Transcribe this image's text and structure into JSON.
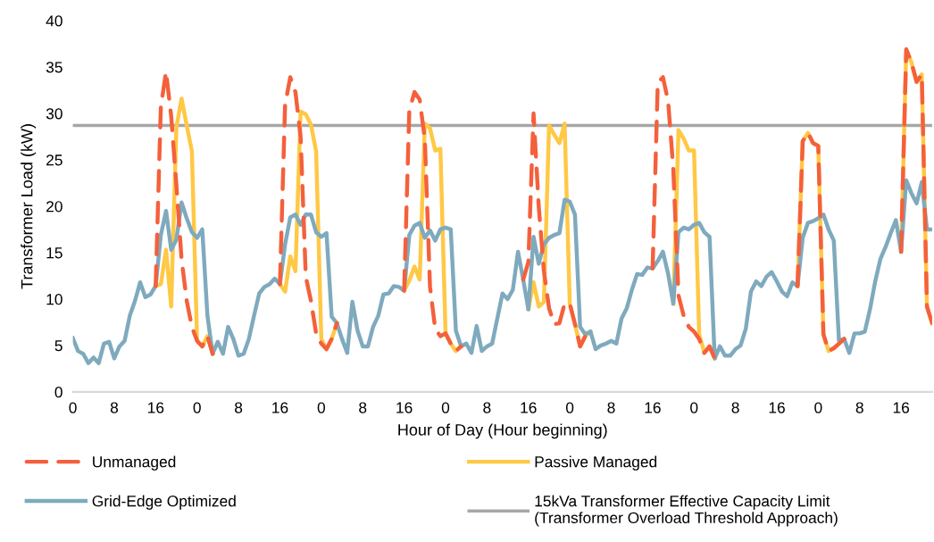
{
  "chart_data": {
    "type": "line",
    "xlabel": "Hour of Day (Hour beginning)",
    "ylabel": "Transformer Load (kW)",
    "categories": [
      "0",
      null,
      null,
      null,
      null,
      null,
      null,
      null,
      "8",
      null,
      null,
      null,
      null,
      null,
      null,
      null,
      "16",
      null,
      null,
      null,
      null,
      null,
      null,
      null,
      "0",
      null,
      null,
      null,
      null,
      null,
      null,
      null,
      "8",
      null,
      null,
      null,
      null,
      null,
      null,
      null,
      "16",
      null,
      null,
      null,
      null,
      null,
      null,
      null,
      "0",
      null,
      null,
      null,
      null,
      null,
      null,
      null,
      "8",
      null,
      null,
      null,
      null,
      null,
      null,
      null,
      "16",
      null,
      null,
      null,
      null,
      null,
      null,
      null,
      "0",
      null,
      null,
      null,
      null,
      null,
      null,
      null,
      "8",
      null,
      null,
      null,
      null,
      null,
      null,
      null,
      "16",
      null,
      null,
      null,
      null,
      null,
      null,
      null,
      "0",
      null,
      null,
      null,
      null,
      null,
      null,
      null,
      "8",
      null,
      null,
      null,
      null,
      null,
      null,
      null,
      "16",
      null,
      null,
      null,
      null,
      null,
      null,
      null,
      "0",
      null,
      null,
      null,
      null,
      null,
      null,
      null,
      "8",
      null,
      null,
      null,
      null,
      null,
      null,
      null,
      "16",
      null,
      null,
      null,
      null,
      null,
      null,
      null,
      "0",
      null,
      null,
      null,
      null,
      null,
      null,
      null,
      "8",
      null,
      null,
      null,
      null,
      null,
      null,
      null,
      "16",
      null,
      null,
      null,
      null,
      null,
      null
    ],
    "ylim": [
      0,
      40
    ],
    "yticks": [
      0,
      5,
      10,
      15,
      20,
      25,
      30,
      35,
      40
    ],
    "grid": false,
    "legend": "bottom",
    "series": [
      {
        "name": "Unmanaged",
        "color": "#f4603c",
        "line_style": "dashed",
        "values": [
          null,
          null,
          null,
          null,
          null,
          null,
          null,
          null,
          null,
          null,
          null,
          null,
          null,
          null,
          null,
          null,
          11.4,
          30.7,
          34.5,
          29.7,
          22.3,
          14.3,
          9.8,
          7.0,
          5.5,
          4.9,
          6.0,
          4.1,
          null,
          null,
          null,
          null,
          null,
          null,
          null,
          null,
          null,
          null,
          null,
          null,
          11.6,
          30.9,
          33.9,
          32.3,
          27.5,
          12.4,
          9.8,
          6.3,
          5.2,
          4.6,
          5.7,
          7.4,
          null,
          null,
          null,
          null,
          null,
          null,
          null,
          null,
          null,
          null,
          null,
          null,
          10.9,
          30.3,
          32.3,
          31.5,
          27.2,
          11.3,
          6.8,
          6.0,
          6.3,
          5.2,
          4.4,
          4.9,
          null,
          null,
          null,
          null,
          null,
          null,
          null,
          null,
          null,
          null,
          null,
          12.1,
          14.0,
          30.0,
          20,
          13,
          9,
          7.3,
          7.4,
          9.5,
          9.5,
          7.3,
          4.9,
          6.0,
          6.5,
          null,
          null,
          null,
          null,
          null,
          null,
          null,
          null,
          null,
          null,
          null,
          13.3,
          33.3,
          33.9,
          31.3,
          24,
          10.4,
          8.2,
          7.0,
          6.5,
          5.7,
          4.2,
          4.9,
          3.6,
          null,
          null,
          null,
          null,
          null,
          null,
          null,
          null,
          null,
          null,
          null,
          null,
          null,
          null,
          null,
          11.4,
          27.0,
          27.9,
          26.8,
          26.5,
          6.2,
          4.4,
          4.7,
          5.2,
          5.7,
          null,
          null,
          null,
          null,
          null,
          null,
          null,
          null,
          null,
          null,
          15.1,
          36.9,
          35.5,
          33.4,
          34.2,
          9.2,
          7.4
        ]
      },
      {
        "name": "Passive Managed",
        "color": "#ffc845",
        "line_style": "solid",
        "values": [
          null,
          null,
          null,
          null,
          null,
          null,
          null,
          null,
          null,
          null,
          null,
          null,
          null,
          null,
          null,
          null,
          11.4,
          11.6,
          15.3,
          9.2,
          28.5,
          31.6,
          28.7,
          25.9,
          5.5,
          4.9,
          6.0,
          4.1,
          null,
          null,
          null,
          null,
          null,
          null,
          null,
          null,
          null,
          null,
          null,
          null,
          11.6,
          10.8,
          14.6,
          13.0,
          30.2,
          29.9,
          28.8,
          25.9,
          5.7,
          4.6,
          5.7,
          7.4,
          null,
          null,
          null,
          null,
          null,
          null,
          null,
          null,
          null,
          null,
          null,
          null,
          10.9,
          12.0,
          13.5,
          12.1,
          28.9,
          28.4,
          26.0,
          26.2,
          6.3,
          5.2,
          4.4,
          4.9,
          null,
          null,
          null,
          null,
          null,
          null,
          null,
          null,
          null,
          null,
          null,
          null,
          8.9,
          11.8,
          9.2,
          9.7,
          28.7,
          27.7,
          26.8,
          28.9,
          9.5,
          7.3,
          4.9,
          6.0,
          6.5,
          null,
          null,
          null,
          null,
          null,
          null,
          null,
          null,
          null,
          null,
          null,
          null,
          null,
          null,
          null,
          9.5,
          28.2,
          27.3,
          26.0,
          26.0,
          6.2,
          4.2,
          4.9,
          3.6,
          null,
          null,
          null,
          null,
          null,
          null,
          null,
          null,
          null,
          null,
          null,
          null,
          null,
          null,
          null,
          11.4,
          27.0,
          27.9,
          26.8,
          26.5,
          6.2,
          4.4,
          4.7,
          5.2,
          5.7,
          null,
          null,
          null,
          null,
          null,
          null,
          null,
          null,
          null,
          null,
          15.1,
          36.9,
          35.5,
          33.4,
          34.2,
          9.2,
          7.4
        ]
      },
      {
        "name": "Grid-Edge Optimized",
        "color": "#7faabe",
        "line_style": "solid",
        "values": [
          5.8,
          4.4,
          4.1,
          3.1,
          3.7,
          3.1,
          5.2,
          5.4,
          3.6,
          4.9,
          5.5,
          8.2,
          9.8,
          11.8,
          10.2,
          10.5,
          11.4,
          16.9,
          19.5,
          15.3,
          16.4,
          20.4,
          18.7,
          17.2,
          16.6,
          17.5,
          8.2,
          4.1,
          5.4,
          4.1,
          7.0,
          5.7,
          3.9,
          4.1,
          5.7,
          8.2,
          10.6,
          11.3,
          11.6,
          12.2,
          11.6,
          15.9,
          18.8,
          19.1,
          18.0,
          19.1,
          19.1,
          17.2,
          16.7,
          17.1,
          8.1,
          7.4,
          5.7,
          4.2,
          9.7,
          6.6,
          4.9,
          4.9,
          7.0,
          8.2,
          10.5,
          10.6,
          11.4,
          11.3,
          10.9,
          16.9,
          17.9,
          18.2,
          16.6,
          17.4,
          16.3,
          17.5,
          17.7,
          17.5,
          6.6,
          4.9,
          5.2,
          4.2,
          7.1,
          4.4,
          4.9,
          5.2,
          7.9,
          10.6,
          10.0,
          11.0,
          15.1,
          12.1,
          8.9,
          16.7,
          13.8,
          15.9,
          16.6,
          16.9,
          17.1,
          20.7,
          20.5,
          19.1,
          7.0,
          6.2,
          6.5,
          4.6,
          5.0,
          5.2,
          5.5,
          5.2,
          7.9,
          9.0,
          11.0,
          12.7,
          12.6,
          13.4,
          13.3,
          14.1,
          15.1,
          12.7,
          9.5,
          17.2,
          17.7,
          17.5,
          18.0,
          18.2,
          17.2,
          16.7,
          3.6,
          4.9,
          3.9,
          3.9,
          4.6,
          5.0,
          6.8,
          10.8,
          11.9,
          11.4,
          12.4,
          12.9,
          11.9,
          10.8,
          10.3,
          11.8,
          11.4,
          16.6,
          18.2,
          18.4,
          18.7,
          19.1,
          17.5,
          16.3,
          5.5,
          5.7,
          4.2,
          6.3,
          6.3,
          6.5,
          8.9,
          11.9,
          14.3,
          15.6,
          17.1,
          18.5,
          15.1,
          22.8,
          21.4,
          20.3,
          22.6,
          17.5,
          17.5
        ]
      }
    ],
    "ref_lines": [
      {
        "axis": "y",
        "value": 28.7,
        "label": "15kVa Transformer Effective Capacity Limit\n(Transformer Overload Threshold Approach)",
        "color": "#a6a6a6",
        "line_style": "solid"
      }
    ]
  }
}
